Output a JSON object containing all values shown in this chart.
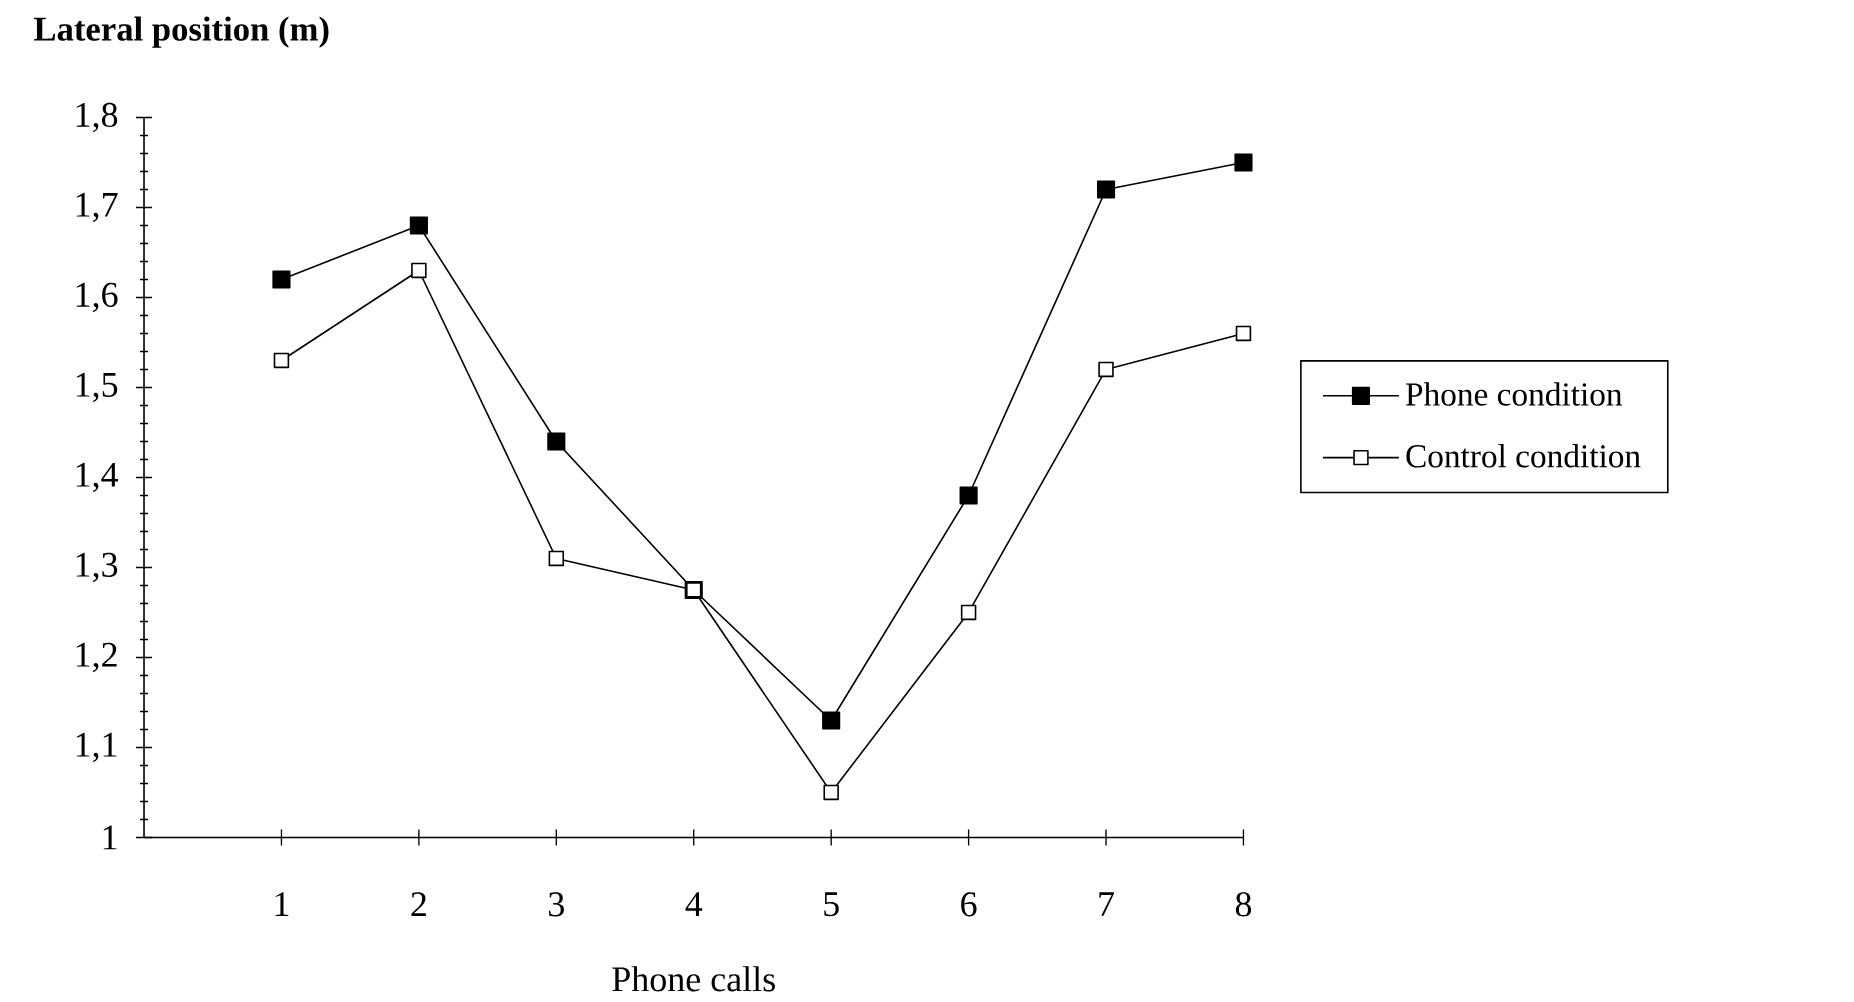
{
  "chart_data": {
    "type": "line",
    "xlabel": "Phone calls",
    "ylabel": "Lateral position (m)",
    "x": [
      1,
      2,
      3,
      4,
      5,
      6,
      7,
      8
    ],
    "xlim": [
      0,
      8
    ],
    "xticks": [
      1,
      2,
      3,
      4,
      5,
      6,
      7,
      8
    ],
    "ylim": [
      1,
      1.8
    ],
    "yticks": [
      1,
      {
        "value": 1.1,
        "label": "1,1"
      },
      {
        "value": 1.2,
        "label": "1,2"
      },
      {
        "value": 1.3,
        "label": "1,3"
      },
      {
        "value": 1.4,
        "label": "1,4"
      },
      {
        "value": 1.5,
        "label": "1,5"
      },
      {
        "value": 1.6,
        "label": "1,6"
      },
      {
        "value": 1.7,
        "label": "1,7"
      },
      {
        "value": 1.8,
        "label": "1,8"
      }
    ],
    "series": [
      {
        "name": "Phone condition",
        "color": "#000000",
        "values": [
          1.62,
          1.68,
          1.44,
          1.275,
          1.13,
          1.38,
          1.72,
          1.75
        ]
      },
      {
        "name": "Control condition",
        "color": "#ffffff",
        "values": [
          1.53,
          1.63,
          1.31,
          1.275,
          1.05,
          1.25,
          1.52,
          1.56
        ]
      }
    ],
    "marker": "square",
    "line_style": "solid",
    "legend": "right",
    "grid": false
  }
}
